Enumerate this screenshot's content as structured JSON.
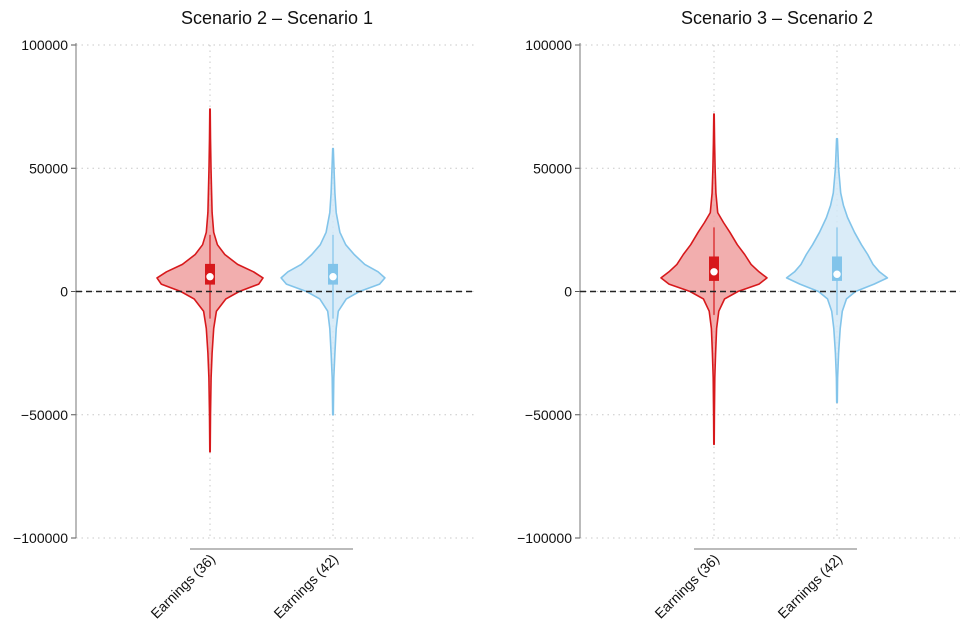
{
  "chart_data": [
    {
      "type": "violin",
      "title": "Scenario 2 – Scenario 1",
      "xlabel": "",
      "ylabel": "",
      "ylim": [
        -100000,
        100000
      ],
      "yticks": [
        100000,
        50000,
        0,
        -50000,
        -100000
      ],
      "ytick_labels": [
        "100000",
        "50000",
        "0",
        "−50000",
        "−100000"
      ],
      "grid": true,
      "reference_line": 0,
      "categories": [
        "Earnings (36)",
        "Earnings (42)"
      ],
      "series": [
        {
          "category": "Earnings (36)",
          "color": "#d7191c",
          "fill": "#f0a0a0",
          "median": 6000,
          "q1": 3000,
          "q3": 11000,
          "min": -65000,
          "max": 74000,
          "profile": [
            [
              -65000,
              0.004
            ],
            [
              -50000,
              0.01
            ],
            [
              -35000,
              0.02
            ],
            [
              -25000,
              0.04
            ],
            [
              -15000,
              0.07
            ],
            [
              -8000,
              0.12
            ],
            [
              -3000,
              0.3
            ],
            [
              0,
              0.55
            ],
            [
              3000,
              0.92
            ],
            [
              5500,
              1.0
            ],
            [
              8000,
              0.82
            ],
            [
              11000,
              0.52
            ],
            [
              15000,
              0.28
            ],
            [
              19000,
              0.14
            ],
            [
              24000,
              0.07
            ],
            [
              32000,
              0.04
            ],
            [
              40000,
              0.03
            ],
            [
              50000,
              0.018
            ],
            [
              62000,
              0.01
            ],
            [
              74000,
              0.004
            ]
          ]
        },
        {
          "category": "Earnings (42)",
          "color": "#82c4ea",
          "fill": "#d4e9f7",
          "median": 6000,
          "q1": 3000,
          "q3": 11000,
          "min": -50000,
          "max": 58000,
          "profile": [
            [
              -50000,
              0.006
            ],
            [
              -35000,
              0.015
            ],
            [
              -25000,
              0.035
            ],
            [
              -15000,
              0.06
            ],
            [
              -8000,
              0.1
            ],
            [
              -3000,
              0.25
            ],
            [
              0,
              0.5
            ],
            [
              3000,
              0.88
            ],
            [
              5500,
              0.98
            ],
            [
              8000,
              0.85
            ],
            [
              11000,
              0.6
            ],
            [
              15000,
              0.4
            ],
            [
              19000,
              0.24
            ],
            [
              24000,
              0.13
            ],
            [
              32000,
              0.06
            ],
            [
              40000,
              0.035
            ],
            [
              50000,
              0.018
            ],
            [
              58000,
              0.006
            ]
          ]
        }
      ]
    },
    {
      "type": "violin",
      "title": "Scenario 3 – Scenario 2",
      "xlabel": "",
      "ylabel": "",
      "ylim": [
        -100000,
        100000
      ],
      "yticks": [
        100000,
        50000,
        0,
        -50000,
        -100000
      ],
      "ytick_labels": [
        "100000",
        "50000",
        "0",
        "−50000",
        "−100000"
      ],
      "grid": true,
      "reference_line": 0,
      "categories": [
        "Earnings (36)",
        "Earnings (42)"
      ],
      "series": [
        {
          "category": "Earnings (36)",
          "color": "#d7191c",
          "fill": "#f0a0a0",
          "median": 8000,
          "q1": 4500,
          "q3": 14000,
          "min": -62000,
          "max": 72000,
          "profile": [
            [
              -62000,
              0.004
            ],
            [
              -50000,
              0.008
            ],
            [
              -35000,
              0.015
            ],
            [
              -25000,
              0.03
            ],
            [
              -15000,
              0.05
            ],
            [
              -8000,
              0.09
            ],
            [
              -3000,
              0.2
            ],
            [
              0,
              0.45
            ],
            [
              3000,
              0.85
            ],
            [
              5500,
              1.0
            ],
            [
              8000,
              0.85
            ],
            [
              11000,
              0.7
            ],
            [
              15000,
              0.58
            ],
            [
              19000,
              0.44
            ],
            [
              24000,
              0.3
            ],
            [
              28000,
              0.18
            ],
            [
              32000,
              0.07
            ],
            [
              40000,
              0.035
            ],
            [
              50000,
              0.02
            ],
            [
              60000,
              0.012
            ],
            [
              72000,
              0.004
            ]
          ]
        },
        {
          "category": "Earnings (42)",
          "color": "#82c4ea",
          "fill": "#d4e9f7",
          "median": 7000,
          "q1": 4500,
          "q3": 14000,
          "min": -45000,
          "max": 62000,
          "profile": [
            [
              -45000,
              0.006
            ],
            [
              -35000,
              0.012
            ],
            [
              -25000,
              0.03
            ],
            [
              -15000,
              0.06
            ],
            [
              -8000,
              0.1
            ],
            [
              -3000,
              0.18
            ],
            [
              0,
              0.35
            ],
            [
              3000,
              0.7
            ],
            [
              5500,
              0.95
            ],
            [
              8000,
              0.8
            ],
            [
              11000,
              0.68
            ],
            [
              15000,
              0.58
            ],
            [
              19000,
              0.46
            ],
            [
              24000,
              0.33
            ],
            [
              30000,
              0.2
            ],
            [
              35000,
              0.12
            ],
            [
              40000,
              0.07
            ],
            [
              50000,
              0.03
            ],
            [
              62000,
              0.008
            ]
          ]
        }
      ]
    }
  ]
}
